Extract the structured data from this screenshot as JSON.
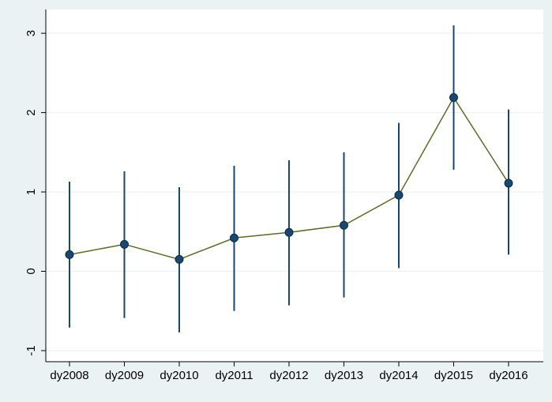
{
  "chart_data": {
    "type": "line",
    "categories": [
      "dy2008",
      "dy2009",
      "dy2010",
      "dy2011",
      "dy2012",
      "dy2013",
      "dy2014",
      "dy2015",
      "dy2016"
    ],
    "values": [
      0.21,
      0.34,
      0.15,
      0.42,
      0.49,
      0.58,
      0.96,
      2.19,
      1.11
    ],
    "ci_low": [
      -0.71,
      -0.59,
      -0.77,
      -0.5,
      -0.43,
      -0.33,
      0.04,
      1.28,
      0.21
    ],
    "ci_high": [
      1.13,
      1.26,
      1.06,
      1.33,
      1.4,
      1.5,
      1.87,
      3.1,
      2.04
    ],
    "color": "#5b6b2a",
    "marker_color": "#1a476f",
    "errorbar_color": "#1a476f",
    "ylim": [
      -1.14,
      3.3
    ],
    "yticks": [
      -1,
      0,
      1,
      2,
      3
    ],
    "grid": true
  }
}
